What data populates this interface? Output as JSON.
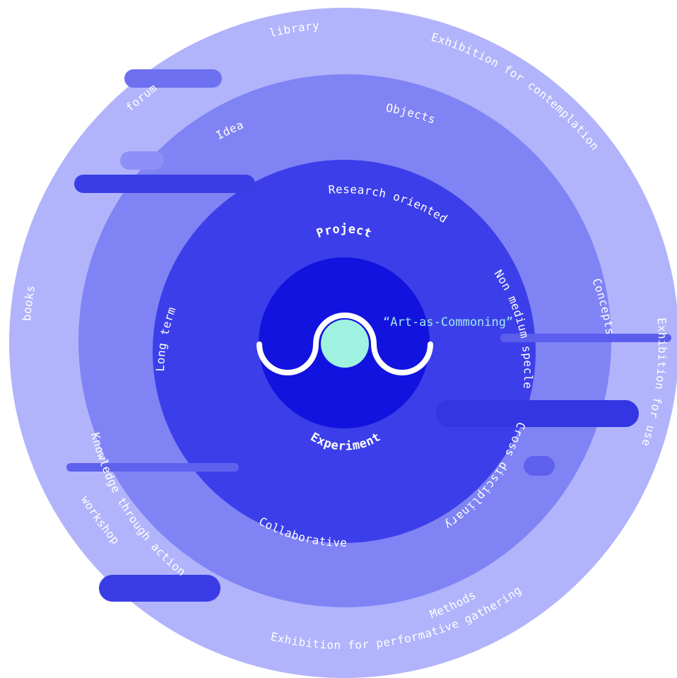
{
  "colors": {
    "outer_ring": "#b1b4fb",
    "second_ring": "#8083f4",
    "third_ring": "#3c3fe9",
    "core": "#1313df",
    "bar_light": "#8d90f6",
    "bar_dark": "#3a3de6",
    "text": "#ffffff",
    "highlight_text": "#9fe8f0",
    "logo_circle": "#9ff1e0",
    "logo_stroke": "#ffffff"
  },
  "core": {
    "top_label": "Project",
    "bottom_label": "Experiment",
    "logo_icon": "commoning-wave-logo"
  },
  "highlight": {
    "label": "“Art-as-Commoning”"
  },
  "inner_ring": {
    "labels": {
      "research": "Research oriented",
      "non_medium": "Non medium specle",
      "cross": "Cross disciplinary",
      "collaborative": "Collaborative",
      "long_term": "Long term"
    }
  },
  "middle_ring": {
    "labels": {
      "objects": "Objects",
      "idea": "Idea",
      "concepts": "Concepts",
      "methods": "Methods",
      "knowledge": "Knowledge through action"
    }
  },
  "outer_ring": {
    "labels": {
      "library": "library",
      "contemplation": "Exhibition for contemplation",
      "forum": "forum",
      "use": "Exhibition for use",
      "books": "books",
      "workshop": "workshop",
      "performative": "Exhibition for performative gathering"
    }
  }
}
